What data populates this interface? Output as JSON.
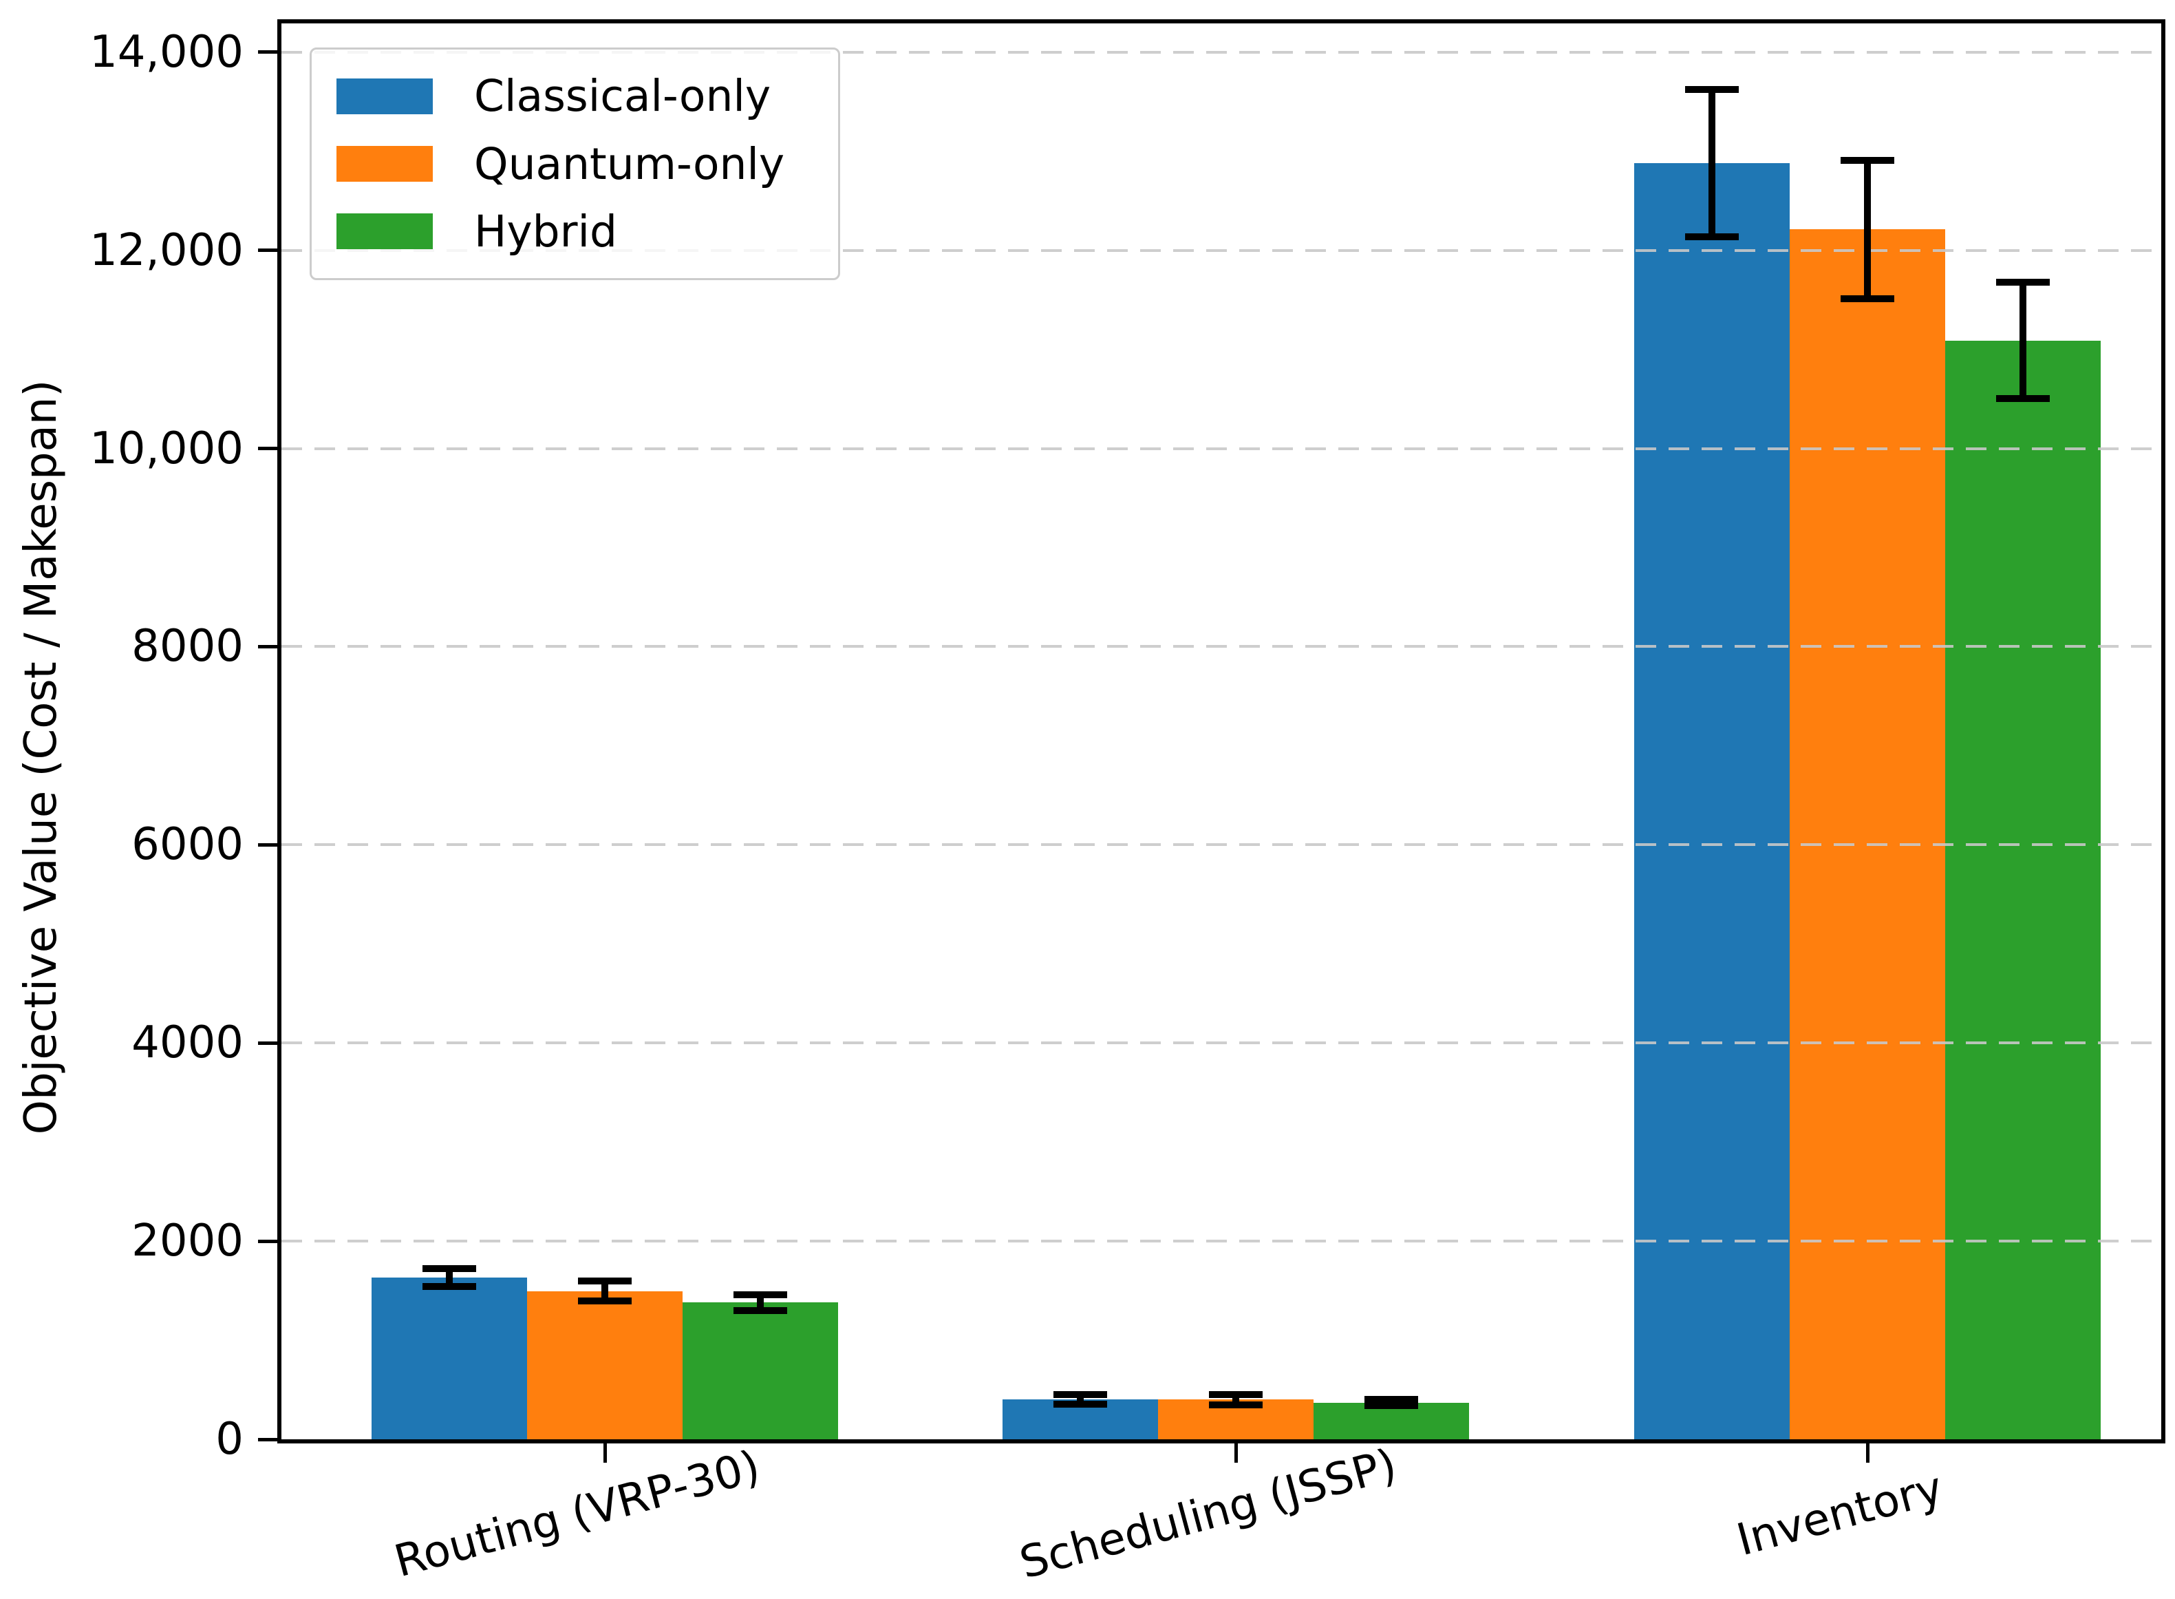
{
  "figure": {
    "background": "#ffffff",
    "axis_color": "#000000",
    "grid_color": "#c8c8c8"
  },
  "axes": {
    "ylabel": "Objective Value (Cost / Makespan)",
    "xlabel": "",
    "ytick_labels": [
      "0",
      "2000",
      "4000",
      "6000",
      "8000",
      "10,000",
      "12,000",
      "14,000"
    ],
    "ytick_values": [
      0,
      2000,
      4000,
      6000,
      8000,
      10000,
      12000,
      14000
    ],
    "xtick_labels": [
      "Routing (VRP-30)",
      "Scheduling (JSSP)",
      "Inventory"
    ]
  },
  "legend": {
    "position": "upper left",
    "entries": [
      {
        "label": "Classical-only",
        "color": "#1f77b4"
      },
      {
        "label": "Quantum-only",
        "color": "#ff7f0e"
      },
      {
        "label": "Hybrid",
        "color": "#2ca02c"
      }
    ]
  },
  "chart_data": {
    "type": "bar",
    "title": "",
    "xlabel": "",
    "ylabel": "Objective Value (Cost / Makespan)",
    "categories": [
      "Routing (VRP-30)",
      "Scheduling (JSSP)",
      "Inventory"
    ],
    "series": [
      {
        "name": "Classical-only",
        "color": "#1f77b4",
        "values": [
          1630,
          405,
          12880
        ],
        "errors": [
          90,
          50,
          740
        ]
      },
      {
        "name": "Quantum-only",
        "color": "#ff7f0e",
        "values": [
          1495,
          400,
          12210
        ],
        "errors": [
          100,
          55,
          700
        ]
      },
      {
        "name": "Hybrid",
        "color": "#2ca02c",
        "values": [
          1380,
          370,
          11090
        ],
        "errors": [
          80,
          30,
          585
        ]
      }
    ],
    "ylim": [
      0,
      14290
    ],
    "grid": "horizontal dashed, drawn over bars",
    "error_bars": "black, with caps",
    "legend_position": "upper left",
    "xtick_rotation_deg": 15
  }
}
